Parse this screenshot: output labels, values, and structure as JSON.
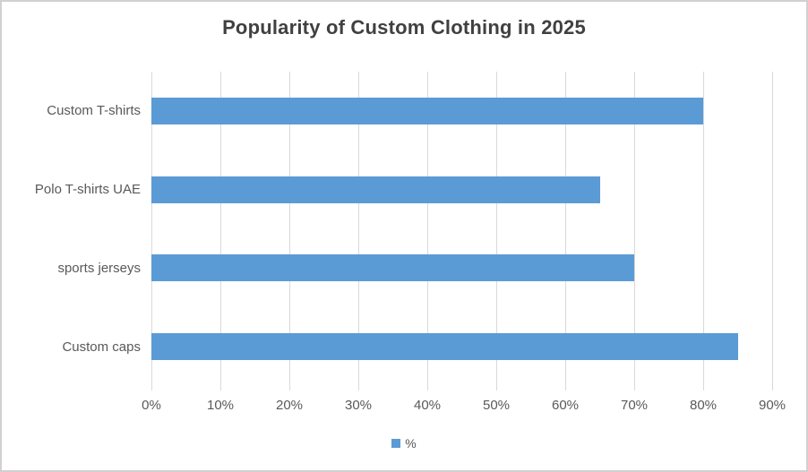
{
  "chart_data": {
    "type": "bar",
    "orientation": "horizontal",
    "title": "Popularity of Custom Clothing in 2025",
    "categories": [
      "Custom T-shirts",
      "Polo T-shirts UAE",
      "sports jerseys",
      "Custom caps"
    ],
    "values": [
      80,
      65,
      70,
      85
    ],
    "unit": "%",
    "xlabel": "",
    "ylabel": "",
    "xlim": [
      0,
      90
    ],
    "x_ticks": [
      "0%",
      "10%",
      "20%",
      "30%",
      "40%",
      "50%",
      "60%",
      "70%",
      "80%",
      "90%"
    ],
    "grid": true,
    "legend_position": "bottom",
    "legend_label": "%",
    "bar_color": "#5B9BD5",
    "gridline_color": "#D9D9D9",
    "text_color": "#595959",
    "title_color": "#404040"
  }
}
